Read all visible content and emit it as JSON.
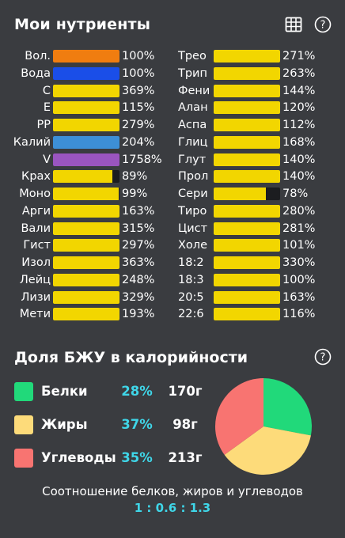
{
  "header": {
    "title": "Мои нутриенты"
  },
  "nutrients_left": [
    {
      "name": "Вол.",
      "value": "100%",
      "fill": 1.0,
      "color": "#f07d10"
    },
    {
      "name": "Вода",
      "value": "100%",
      "fill": 1.0,
      "color": "#1a4ee8"
    },
    {
      "name": "C",
      "value": "369%",
      "fill": 1.0,
      "color": "#f2d600"
    },
    {
      "name": "E",
      "value": "115%",
      "fill": 1.0,
      "color": "#f2d600"
    },
    {
      "name": "PP",
      "value": "279%",
      "fill": 1.0,
      "color": "#f2d600"
    },
    {
      "name": "Калий",
      "value": "204%",
      "fill": 1.0,
      "color": "#3d8fd6"
    },
    {
      "name": "V",
      "value": "1758%",
      "fill": 1.0,
      "color": "#9a55c0"
    },
    {
      "name": "Крах",
      "value": "89%",
      "fill": 0.89,
      "color": "#f2d600"
    },
    {
      "name": "Моно",
      "value": "99%",
      "fill": 0.99,
      "color": "#f2d600"
    },
    {
      "name": "Арги",
      "value": "163%",
      "fill": 1.0,
      "color": "#f2d600"
    },
    {
      "name": "Вали",
      "value": "315%",
      "fill": 1.0,
      "color": "#f2d600"
    },
    {
      "name": "Гист",
      "value": "297%",
      "fill": 1.0,
      "color": "#f2d600"
    },
    {
      "name": "Изол",
      "value": "363%",
      "fill": 1.0,
      "color": "#f2d600"
    },
    {
      "name": "Лейц",
      "value": "248%",
      "fill": 1.0,
      "color": "#f2d600"
    },
    {
      "name": "Лизи",
      "value": "329%",
      "fill": 1.0,
      "color": "#f2d600"
    },
    {
      "name": "Мети",
      "value": "193%",
      "fill": 1.0,
      "color": "#f2d600"
    }
  ],
  "nutrients_right": [
    {
      "name": "Трео",
      "value": "271%",
      "fill": 1.0,
      "color": "#f2d600"
    },
    {
      "name": "Трип",
      "value": "263%",
      "fill": 1.0,
      "color": "#f2d600"
    },
    {
      "name": "Фени",
      "value": "144%",
      "fill": 1.0,
      "color": "#f2d600"
    },
    {
      "name": "Алан",
      "value": "120%",
      "fill": 1.0,
      "color": "#f2d600"
    },
    {
      "name": "Аспа",
      "value": "112%",
      "fill": 1.0,
      "color": "#f2d600"
    },
    {
      "name": "Глиц",
      "value": "168%",
      "fill": 1.0,
      "color": "#f2d600"
    },
    {
      "name": "Глут",
      "value": "140%",
      "fill": 1.0,
      "color": "#f2d600"
    },
    {
      "name": "Прол",
      "value": "140%",
      "fill": 1.0,
      "color": "#f2d600"
    },
    {
      "name": "Сери",
      "value": "78%",
      "fill": 0.78,
      "color": "#f2d600"
    },
    {
      "name": "Тиро",
      "value": "280%",
      "fill": 1.0,
      "color": "#f2d600"
    },
    {
      "name": "Цист",
      "value": "281%",
      "fill": 1.0,
      "color": "#f2d600"
    },
    {
      "name": "Холе",
      "value": "101%",
      "fill": 1.0,
      "color": "#f2d600"
    },
    {
      "name": "18:2",
      "value": "330%",
      "fill": 1.0,
      "color": "#f2d600"
    },
    {
      "name": "18:3",
      "value": "100%",
      "fill": 1.0,
      "color": "#f2d600"
    },
    {
      "name": "20:5",
      "value": "163%",
      "fill": 1.0,
      "color": "#f2d600"
    },
    {
      "name": "22:6",
      "value": "116%",
      "fill": 1.0,
      "color": "#f2d600"
    }
  ],
  "macros": {
    "title": "Доля БЖУ в калорийности",
    "items": [
      {
        "name": "Белки",
        "percent": "28%",
        "grams": "170г",
        "share": 28,
        "color": "#21d97a"
      },
      {
        "name": "Жиры",
        "percent": "37%",
        "grams": "98г",
        "share": 37,
        "color": "#fddb7a"
      },
      {
        "name": "Углеводы",
        "percent": "35%",
        "grams": "213г",
        "share": 35,
        "color": "#f87471"
      }
    ],
    "ratio_label": "Соотношение белков, жиров и углеводов",
    "ratio_value": "1 : 0.6 : 1.3"
  },
  "icons": {
    "table": "table-grid-icon",
    "help": "help-circle-icon"
  }
}
